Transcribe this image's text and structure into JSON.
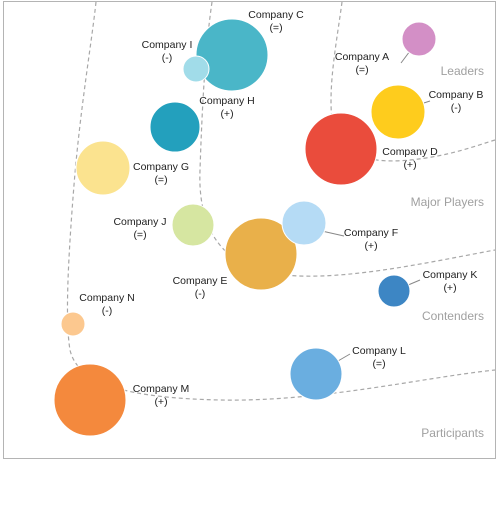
{
  "chart_data": {
    "type": "bubble",
    "title": "",
    "xlabel": "",
    "ylabel": "",
    "grid": false,
    "zones": [
      "Leaders",
      "Major Players",
      "Contenders",
      "Participants"
    ],
    "companies": [
      {
        "name": "Company A",
        "trend": "(=)",
        "color": "#d38fc6",
        "size": 17
      },
      {
        "name": "Company B",
        "trend": "(-)",
        "color": "#fecc1d",
        "size": 27
      },
      {
        "name": "Company C",
        "trend": "(=)",
        "color": "#4ab6c8",
        "size": 36
      },
      {
        "name": "Company D",
        "trend": "(+)",
        "color": "#ea4c3c",
        "size": 36
      },
      {
        "name": "Company E",
        "trend": "(-)",
        "color": "#e9b04a",
        "size": 36
      },
      {
        "name": "Company F",
        "trend": "(+)",
        "color": "#b5dbf5",
        "size": 22
      },
      {
        "name": "Company G",
        "trend": "(=)",
        "color": "#fbe38f",
        "size": 27
      },
      {
        "name": "Company H",
        "trend": "(+)",
        "color": "#23a0bd",
        "size": 25
      },
      {
        "name": "Company I",
        "trend": "(-)",
        "color": "#a1dce9",
        "size": 13
      },
      {
        "name": "Company J",
        "trend": "(=)",
        "color": "#d6e6a1",
        "size": 21
      },
      {
        "name": "Company K",
        "trend": "(+)",
        "color": "#3d86c4",
        "size": 16
      },
      {
        "name": "Company L",
        "trend": "(=)",
        "color": "#6aaee0",
        "size": 26
      },
      {
        "name": "Company M",
        "trend": "(+)",
        "color": "#f4893d",
        "size": 36
      },
      {
        "name": "Company N",
        "trend": "(-)",
        "color": "#fcc88f",
        "size": 12
      }
    ]
  }
}
